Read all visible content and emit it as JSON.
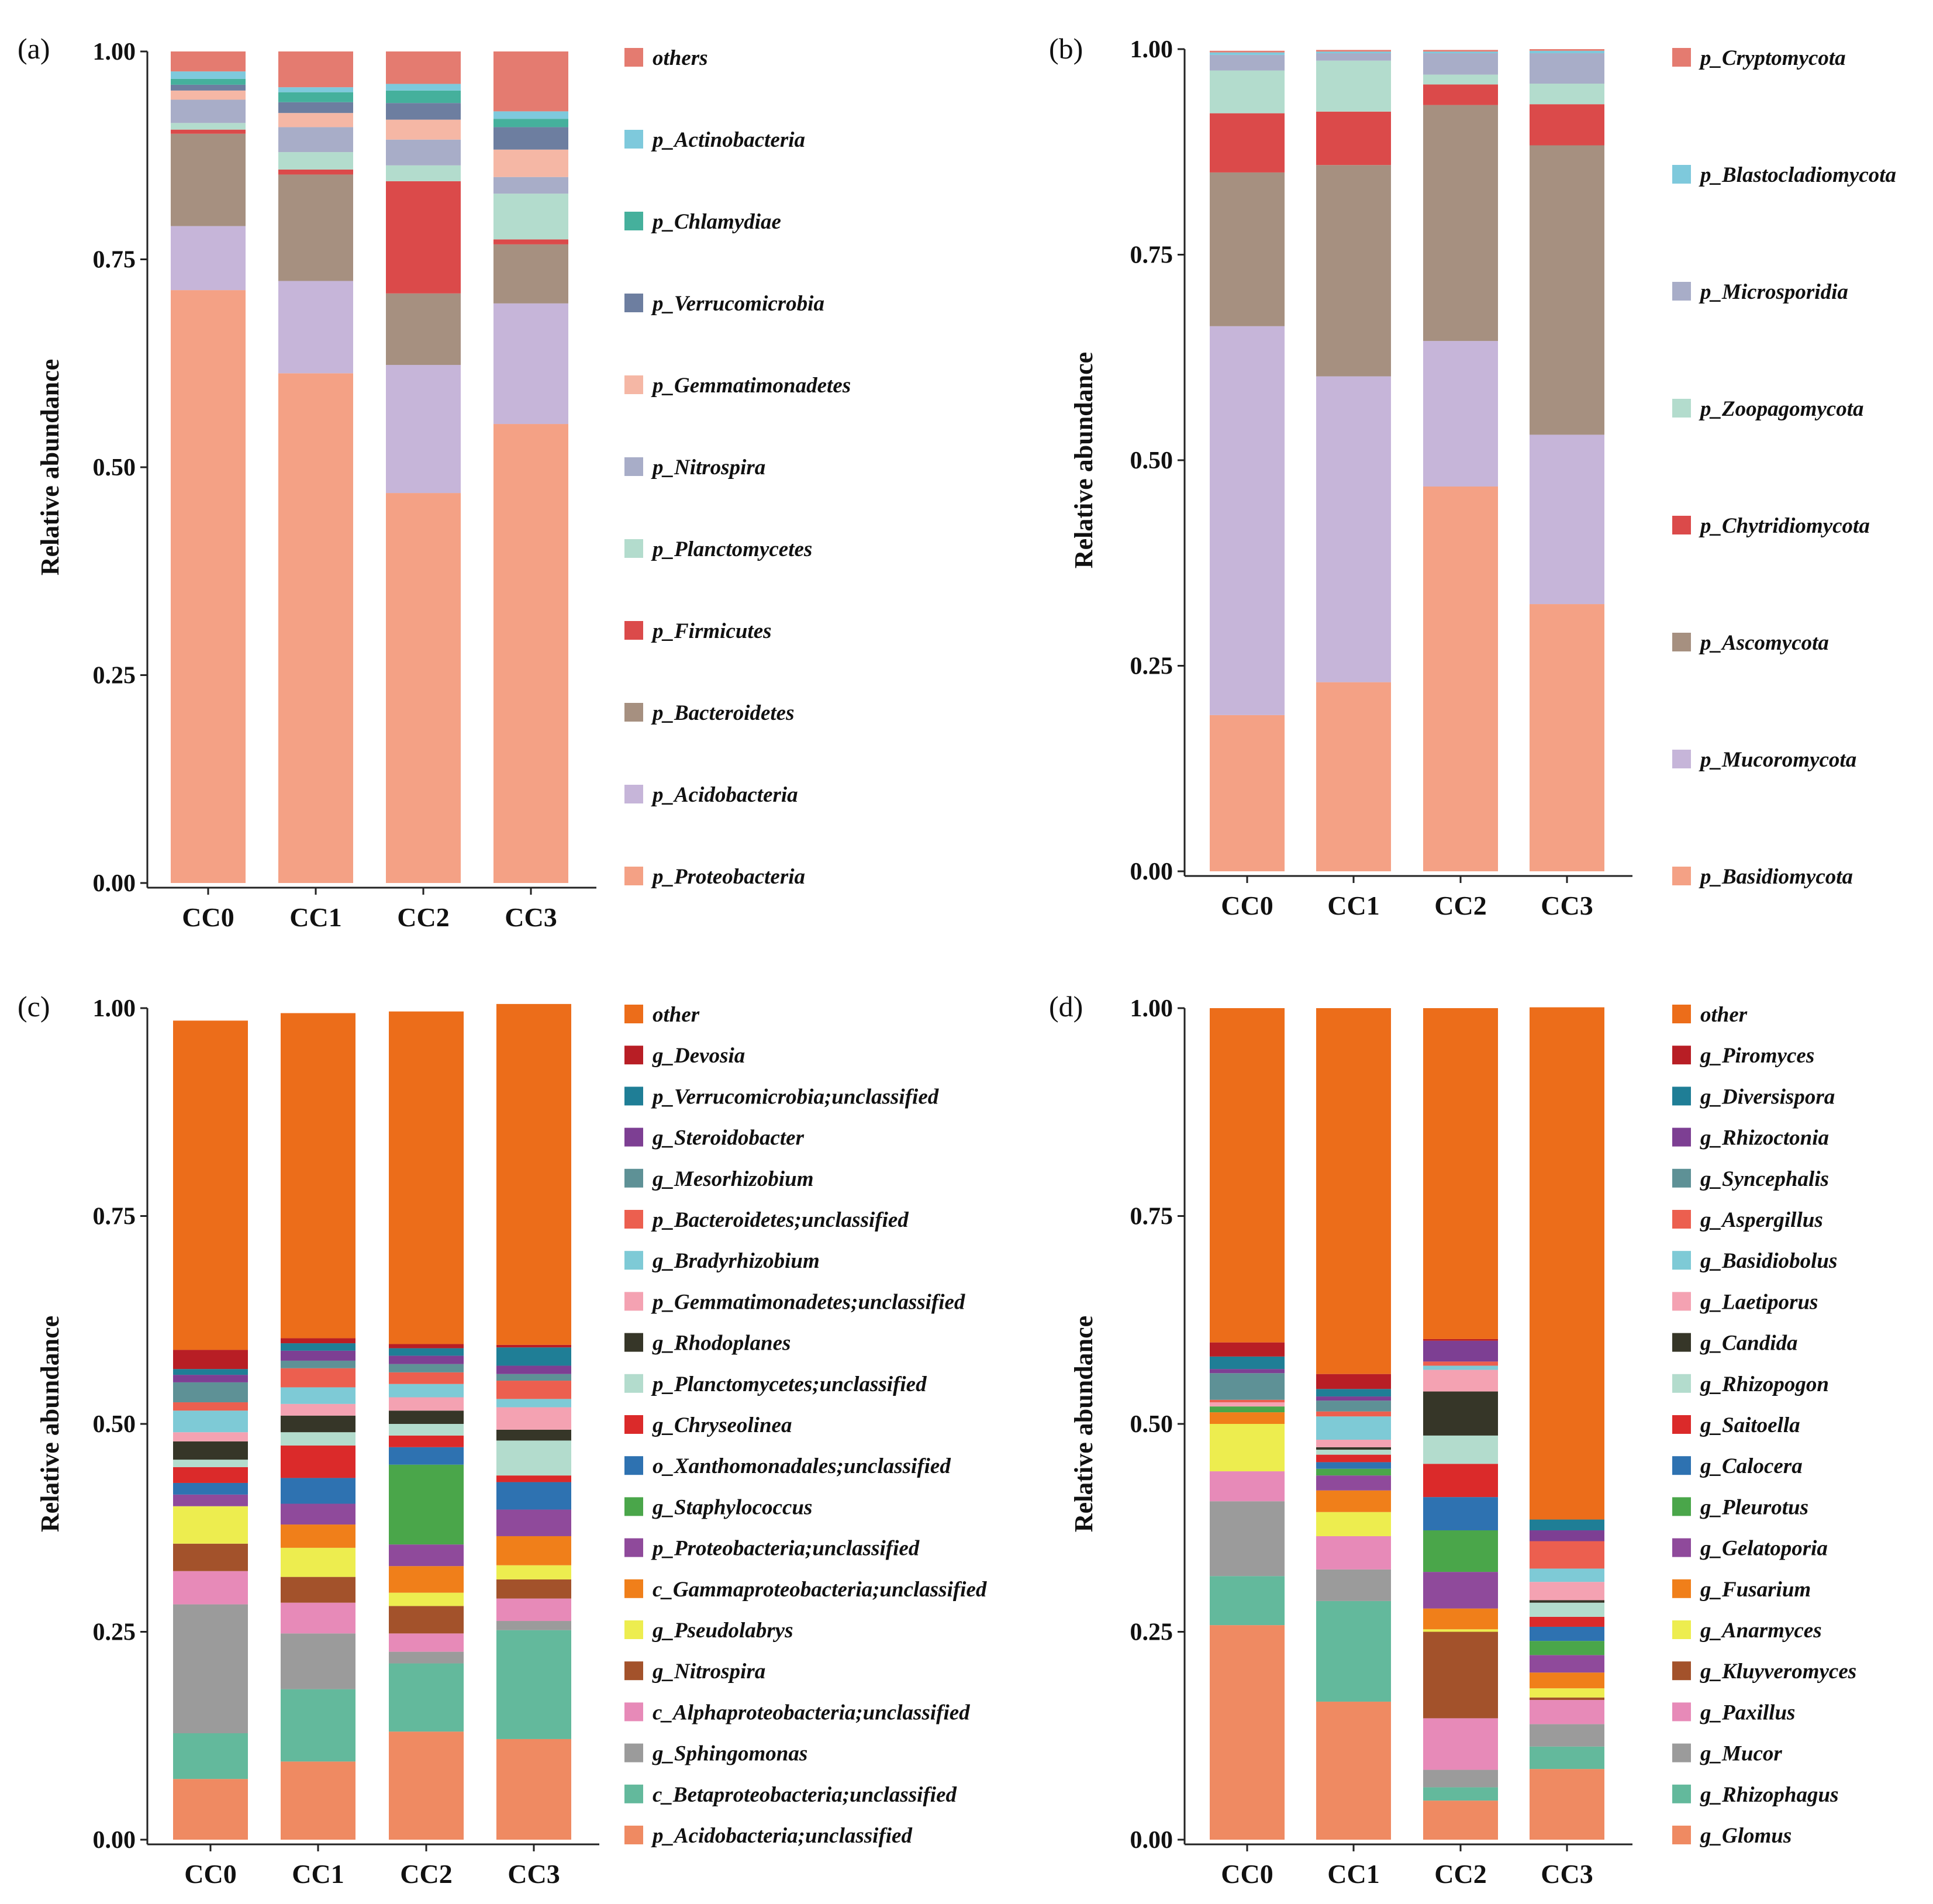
{
  "figure_title": "",
  "chart_data": [
    {
      "panel": "(a)",
      "type": "bar",
      "stacked": true,
      "ylabel": "Relative abundance",
      "ylim": [
        0,
        1
      ],
      "yticks": [
        "0.00",
        "0.25",
        "0.50",
        "0.75",
        "1.00"
      ],
      "categories": [
        "CC0",
        "CC1",
        "CC2",
        "CC3"
      ],
      "legend_position": "right",
      "series": [
        {
          "name": "p_Proteobacteria",
          "color": "#f4a185",
          "values": [
            0.713,
            0.613,
            0.469,
            0.552
          ]
        },
        {
          "name": "p_Acidobacteria",
          "color": "#c6b5d9",
          "values": [
            0.077,
            0.111,
            0.154,
            0.145
          ]
        },
        {
          "name": "p_Bacteroidetes",
          "color": "#a69080",
          "values": [
            0.111,
            0.128,
            0.086,
            0.071
          ]
        },
        {
          "name": "p_Firmicutes",
          "color": "#db4a4a",
          "values": [
            0.005,
            0.006,
            0.135,
            0.006
          ]
        },
        {
          "name": "p_Planctomycetes",
          "color": "#b3dccd",
          "values": [
            0.008,
            0.021,
            0.019,
            0.055
          ]
        },
        {
          "name": "p_Nitrospira",
          "color": "#a8adc8",
          "values": [
            0.028,
            0.03,
            0.031,
            0.02
          ]
        },
        {
          "name": "p_Gemmatimonadetes",
          "color": "#f5b7a5",
          "values": [
            0.011,
            0.017,
            0.024,
            0.033
          ]
        },
        {
          "name": "p_Verrucomicrobia",
          "color": "#6d7ea0",
          "values": [
            0.007,
            0.013,
            0.02,
            0.027
          ]
        },
        {
          "name": "p_Chlamydiae",
          "color": "#45b09c",
          "values": [
            0.007,
            0.012,
            0.015,
            0.01
          ]
        },
        {
          "name": "p_Actinobacteria",
          "color": "#7ec9dc",
          "values": [
            0.009,
            0.006,
            0.008,
            0.009
          ]
        },
        {
          "name": "others",
          "color": "#e47b70",
          "values": [
            0.024,
            0.043,
            0.039,
            0.072
          ]
        }
      ],
      "legend_order": [
        "others",
        "p_Actinobacteria",
        "p_Chlamydiae",
        "p_Verrucomicrobia",
        "p_Gemmatimonadetes",
        "p_Nitrospira",
        "p_Planctomycetes",
        "p_Firmicutes",
        "p_Bacteroidetes",
        "p_Acidobacteria",
        "p_Proteobacteria"
      ]
    },
    {
      "panel": "(b)",
      "type": "bar",
      "stacked": true,
      "ylabel": "Relative abundance",
      "ylim": [
        0,
        1
      ],
      "yticks": [
        "0.00",
        "0.25",
        "0.50",
        "0.75",
        "1.00"
      ],
      "categories": [
        "CC0",
        "CC1",
        "CC2",
        "CC3"
      ],
      "legend_position": "right",
      "series": [
        {
          "name": "p_Basidiomycota",
          "color": "#f4a185",
          "values": [
            0.19,
            0.23,
            0.468,
            0.325
          ]
        },
        {
          "name": "p_Mucoromycota",
          "color": "#c6b5d9",
          "values": [
            0.473,
            0.372,
            0.177,
            0.206
          ]
        },
        {
          "name": "p_Ascomycota",
          "color": "#a69080",
          "values": [
            0.187,
            0.257,
            0.287,
            0.352
          ]
        },
        {
          "name": "p_Chytridiomycota",
          "color": "#db4a4a",
          "values": [
            0.072,
            0.065,
            0.025,
            0.05
          ]
        },
        {
          "name": "p_Zoopagomycota",
          "color": "#b3dccd",
          "values": [
            0.052,
            0.062,
            0.012,
            0.025
          ]
        },
        {
          "name": "p_Microsporidia",
          "color": "#a8adc8",
          "values": [
            0.019,
            0.009,
            0.026,
            0.037
          ]
        },
        {
          "name": "p_Blastocladiomycota",
          "color": "#7ec9dc",
          "values": [
            0.003,
            0.002,
            0.002,
            0.003
          ]
        },
        {
          "name": "p_Cryptomycota",
          "color": "#e47b70",
          "values": [
            0.002,
            0.002,
            0.002,
            0.002
          ]
        }
      ],
      "legend_order": [
        "p_Cryptomycota",
        "p_Blastocladiomycota",
        "p_Microsporidia",
        "p_Zoopagomycota",
        "p_Chytridiomycota",
        "p_Ascomycota",
        "p_Mucoromycota",
        "p_Basidiomycota"
      ]
    },
    {
      "panel": "(c)",
      "type": "bar",
      "stacked": true,
      "ylabel": "Relative abundance",
      "ylim": [
        0,
        1
      ],
      "yticks": [
        "0.00",
        "0.25",
        "0.50",
        "0.75",
        "1.00"
      ],
      "categories": [
        "CC0",
        "CC1",
        "CC2",
        "CC3"
      ],
      "legend_position": "right",
      "series": [
        {
          "name": "p_Acidobacteria;unclassified",
          "color": "#ef8a62",
          "values": [
            0.073,
            0.094,
            0.13,
            0.121
          ]
        },
        {
          "name": "c_Betaproteobacteria;unclassified",
          "color": "#63b99c",
          "values": [
            0.055,
            0.087,
            0.082,
            0.131
          ]
        },
        {
          "name": "g_Sphingomonas",
          "color": "#9b9b9b",
          "values": [
            0.155,
            0.067,
            0.014,
            0.011
          ]
        },
        {
          "name": "c_Alphaproteobacteria;unclassified",
          "color": "#e78ab8",
          "values": [
            0.04,
            0.037,
            0.022,
            0.027
          ]
        },
        {
          "name": "g_Nitrospira",
          "color": "#a3522b",
          "values": [
            0.033,
            0.031,
            0.033,
            0.023
          ]
        },
        {
          "name": "g_Pseudolabrys",
          "color": "#eded4f",
          "values": [
            0.045,
            0.035,
            0.016,
            0.017
          ]
        },
        {
          "name": "c_Gammaproteobacteria;unclassified",
          "color": "#f07f1a",
          "values": [
            0.0,
            0.028,
            0.032,
            0.035
          ]
        },
        {
          "name": "p_Proteobacteria;unclassified",
          "color": "#8f4a9b",
          "values": [
            0.014,
            0.025,
            0.026,
            0.032
          ]
        },
        {
          "name": "g_Staphylococcus",
          "color": "#4aa64a",
          "values": [
            0.0,
            0.0,
            0.096,
            0.0
          ]
        },
        {
          "name": "o_Xanthomonadales;unclassified",
          "color": "#2e72b1",
          "values": [
            0.014,
            0.031,
            0.021,
            0.033
          ]
        },
        {
          "name": "g_Chryseolinea",
          "color": "#db2a2a",
          "values": [
            0.019,
            0.039,
            0.014,
            0.008
          ]
        },
        {
          "name": "p_Planctomycetes;unclassified",
          "color": "#b3dccd",
          "values": [
            0.009,
            0.016,
            0.014,
            0.042
          ]
        },
        {
          "name": "g_Rhodoplanes",
          "color": "#363628",
          "values": [
            0.022,
            0.02,
            0.016,
            0.013
          ]
        },
        {
          "name": "p_Gemmatimonadetes;unclassified",
          "color": "#f4a2b2",
          "values": [
            0.011,
            0.014,
            0.016,
            0.027
          ]
        },
        {
          "name": "g_Bradyrhizobium",
          "color": "#7ecad6",
          "values": [
            0.026,
            0.02,
            0.016,
            0.01
          ]
        },
        {
          "name": "p_Bacteroidetes;unclassified",
          "color": "#ec5f4f",
          "values": [
            0.01,
            0.023,
            0.014,
            0.022
          ]
        },
        {
          "name": "g_Mesorhizobium",
          "color": "#5e9196",
          "values": [
            0.024,
            0.009,
            0.01,
            0.008
          ]
        },
        {
          "name": "g_Steroidobacter",
          "color": "#7d3f93",
          "values": [
            0.009,
            0.012,
            0.01,
            0.01
          ]
        },
        {
          "name": "p_Verrucomicrobia;unclassified",
          "color": "#1f7e96",
          "values": [
            0.007,
            0.009,
            0.009,
            0.022
          ]
        },
        {
          "name": "g_Devosia",
          "color": "#b81e25",
          "values": [
            0.023,
            0.006,
            0.005,
            0.003
          ]
        },
        {
          "name": "other",
          "color": "#ec6d1a",
          "values": [
            0.396,
            0.391,
            0.4,
            0.41
          ]
        }
      ],
      "legend_order": [
        "other",
        "g_Devosia",
        "p_Verrucomicrobia;unclassified",
        "g_Steroidobacter",
        "g_Mesorhizobium",
        "p_Bacteroidetes;unclassified",
        "g_Bradyrhizobium",
        "p_Gemmatimonadetes;unclassified",
        "g_Rhodoplanes",
        "p_Planctomycetes;unclassified",
        "g_Chryseolinea",
        "o_Xanthomonadales;unclassified",
        "g_Staphylococcus",
        "p_Proteobacteria;unclassified",
        "c_Gammaproteobacteria;unclassified",
        "g_Pseudolabrys",
        "g_Nitrospira",
        "c_Alphaproteobacteria;unclassified",
        "g_Sphingomonas",
        "c_Betaproteobacteria;unclassified",
        "p_Acidobacteria;unclassified"
      ]
    },
    {
      "panel": "(d)",
      "type": "bar",
      "stacked": true,
      "ylabel": "Relative abundance",
      "ylim": [
        0,
        1
      ],
      "yticks": [
        "0.00",
        "0.25",
        "0.50",
        "0.75",
        "1.00"
      ],
      "categories": [
        "CC0",
        "CC1",
        "CC2",
        "CC3"
      ],
      "legend_position": "right",
      "series": [
        {
          "name": "g_Glomus",
          "color": "#ef8a62",
          "values": [
            0.258,
            0.166,
            0.047,
            0.085
          ]
        },
        {
          "name": "g_Rhizophagus",
          "color": "#63b99c",
          "values": [
            0.059,
            0.121,
            0.016,
            0.027
          ]
        },
        {
          "name": "g_Mucor",
          "color": "#9b9b9b",
          "values": [
            0.09,
            0.038,
            0.021,
            0.027
          ]
        },
        {
          "name": "g_Paxillus",
          "color": "#e78ab8",
          "values": [
            0.036,
            0.04,
            0.062,
            0.029
          ]
        },
        {
          "name": "g_Kluyveromyces",
          "color": "#a3522b",
          "values": [
            0.0,
            0.0,
            0.104,
            0.003
          ]
        },
        {
          "name": "g_Anarmyces",
          "color": "#eded4f",
          "values": [
            0.057,
            0.029,
            0.003,
            0.011
          ]
        },
        {
          "name": "g_Fusarium",
          "color": "#f07f1a",
          "values": [
            0.014,
            0.026,
            0.025,
            0.019
          ]
        },
        {
          "name": "g_Gelatoporia",
          "color": "#8f4a9b",
          "values": [
            0.0,
            0.018,
            0.044,
            0.021
          ]
        },
        {
          "name": "g_Pleurotus",
          "color": "#4aa64a",
          "values": [
            0.007,
            0.008,
            0.05,
            0.017
          ]
        },
        {
          "name": "g_Calocera",
          "color": "#2e72b1",
          "values": [
            0.0,
            0.008,
            0.04,
            0.017
          ]
        },
        {
          "name": "g_Saitoella",
          "color": "#db2a2a",
          "values": [
            0.0,
            0.009,
            0.04,
            0.012
          ]
        },
        {
          "name": "g_Rhizopogon",
          "color": "#b3dccd",
          "values": [
            0.0,
            0.006,
            0.034,
            0.017
          ]
        },
        {
          "name": "g_Candida",
          "color": "#363628",
          "values": [
            0.0,
            0.003,
            0.053,
            0.003
          ]
        },
        {
          "name": "g_Laetiporus",
          "color": "#f4a2b2",
          "values": [
            0.005,
            0.009,
            0.026,
            0.022
          ]
        },
        {
          "name": "g_Basidiobolus",
          "color": "#7ecad6",
          "values": [
            0.0,
            0.028,
            0.005,
            0.016
          ]
        },
        {
          "name": "g_Aspergillus",
          "color": "#ec5f4f",
          "values": [
            0.003,
            0.006,
            0.005,
            0.033
          ]
        },
        {
          "name": "g_Syncephalis",
          "color": "#5e9196",
          "values": [
            0.032,
            0.013,
            0.0,
            0.0
          ]
        },
        {
          "name": "g_Rhizoctonia",
          "color": "#7d3f93",
          "values": [
            0.005,
            0.005,
            0.025,
            0.013
          ]
        },
        {
          "name": "g_Diversispora",
          "color": "#1f7e96",
          "values": [
            0.015,
            0.009,
            0.0,
            0.013
          ]
        },
        {
          "name": "g_Piromyces",
          "color": "#b81e25",
          "values": [
            0.017,
            0.018,
            0.002,
            0.0
          ]
        },
        {
          "name": "other",
          "color": "#ec6d1a",
          "values": [
            0.402,
            0.44,
            0.398,
            0.616
          ]
        }
      ],
      "legend_order": [
        "other",
        "g_Piromyces",
        "g_Diversispora",
        "g_Rhizoctonia",
        "g_Syncephalis",
        "g_Aspergillus",
        "g_Basidiobolus",
        "g_Laetiporus",
        "g_Candida",
        "g_Rhizopogon",
        "g_Saitoella",
        "g_Calocera",
        "g_Pleurotus",
        "g_Gelatoporia",
        "g_Fusarium",
        "g_Anarmyces",
        "g_Kluyveromyces",
        "g_Paxillus",
        "g_Mucor",
        "g_Rhizophagus",
        "g_Glomus"
      ]
    }
  ]
}
